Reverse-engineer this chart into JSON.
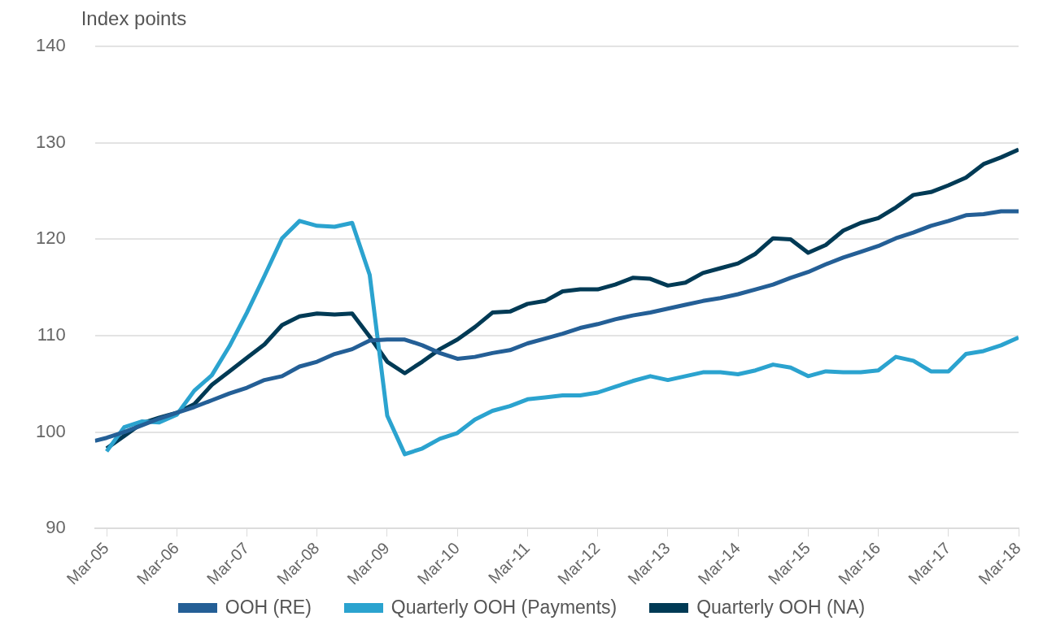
{
  "chart_data": {
    "type": "line",
    "ylabel": "Index points",
    "xlim": [
      "2005-01",
      "2018-03"
    ],
    "xticks": [
      {
        "value": "2005-03",
        "label": "Mar-05"
      },
      {
        "value": "2006-03",
        "label": "Mar-06"
      },
      {
        "value": "2007-03",
        "label": "Mar-07"
      },
      {
        "value": "2008-03",
        "label": "Mar-08"
      },
      {
        "value": "2009-03",
        "label": "Mar-09"
      },
      {
        "value": "2010-03",
        "label": "Mar-10"
      },
      {
        "value": "2011-03",
        "label": "Mar-11"
      },
      {
        "value": "2012-03",
        "label": "Mar-12"
      },
      {
        "value": "2013-03",
        "label": "Mar-13"
      },
      {
        "value": "2014-03",
        "label": "Mar-14"
      },
      {
        "value": "2015-03",
        "label": "Mar-15"
      },
      {
        "value": "2016-03",
        "label": "Mar-16"
      },
      {
        "value": "2017-03",
        "label": "Mar-17"
      },
      {
        "value": "2018-03",
        "label": "Mar-18"
      }
    ],
    "x": [
      "2005-03",
      "2005-06",
      "2005-09",
      "2005-12",
      "2006-03",
      "2006-06",
      "2006-09",
      "2006-12",
      "2007-03",
      "2007-06",
      "2007-09",
      "2007-12",
      "2008-03",
      "2008-06",
      "2008-09",
      "2008-12",
      "2009-03",
      "2009-06",
      "2009-09",
      "2009-12",
      "2010-03",
      "2010-06",
      "2010-09",
      "2010-12",
      "2011-03",
      "2011-06",
      "2011-09",
      "2011-12",
      "2012-03",
      "2012-06",
      "2012-09",
      "2012-12",
      "2013-03",
      "2013-06",
      "2013-09",
      "2013-12",
      "2014-03",
      "2014-06",
      "2014-09",
      "2014-12",
      "2015-03",
      "2015-06",
      "2015-09",
      "2015-12",
      "2016-03",
      "2016-06",
      "2016-09",
      "2016-12",
      "2017-03",
      "2017-06",
      "2017-09",
      "2017-12",
      "2018-03"
    ],
    "ylim": [
      90,
      140
    ],
    "yticks": [
      90,
      100,
      110,
      120,
      130,
      140
    ],
    "grid": "y",
    "legend": "bottom",
    "marker": "none",
    "line_style": "solid",
    "series": [
      {
        "name": "OOH (RE)",
        "color": "#245f96",
        "x": [
          "2005-01",
          "2005-03",
          "2005-06",
          "2005-09",
          "2005-12",
          "2006-03",
          "2006-06",
          "2006-09",
          "2006-12",
          "2007-03",
          "2007-06",
          "2007-09",
          "2007-12",
          "2008-03",
          "2008-06",
          "2008-09",
          "2008-12",
          "2009-03",
          "2009-06",
          "2009-09",
          "2009-12",
          "2010-03",
          "2010-06",
          "2010-09",
          "2010-12",
          "2011-03",
          "2011-06",
          "2011-09",
          "2011-12",
          "2012-03",
          "2012-06",
          "2012-09",
          "2012-12",
          "2013-03",
          "2013-06",
          "2013-09",
          "2013-12",
          "2014-03",
          "2014-06",
          "2014-09",
          "2014-12",
          "2015-03",
          "2015-06",
          "2015-09",
          "2015-12",
          "2016-03",
          "2016-06",
          "2016-09",
          "2016-12",
          "2017-03",
          "2017-06",
          "2017-09",
          "2017-12",
          "2018-03"
        ],
        "values": [
          99.1,
          99.4,
          100.0,
          100.7,
          101.4,
          102.0,
          102.6,
          103.3,
          104.0,
          104.6,
          105.4,
          105.8,
          106.8,
          107.3,
          108.1,
          108.6,
          109.5,
          109.6,
          109.6,
          109.0,
          108.2,
          107.6,
          107.8,
          108.2,
          108.5,
          109.2,
          109.7,
          110.2,
          110.8,
          111.2,
          111.7,
          112.1,
          112.4,
          112.8,
          113.2,
          113.6,
          113.9,
          114.3,
          114.8,
          115.3,
          116.0,
          116.6,
          117.4,
          118.1,
          118.7,
          119.3,
          120.1,
          120.7,
          121.4,
          121.9,
          122.5,
          122.6,
          122.9,
          122.9
        ]
      },
      {
        "name": "Quarterly OOH (Payments)",
        "color": "#2ba3cf",
        "values": [
          98.0,
          100.5,
          101.1,
          101.0,
          101.8,
          104.3,
          105.9,
          108.9,
          112.4,
          116.2,
          120.1,
          121.9,
          121.4,
          121.3,
          121.7,
          116.3,
          101.7,
          97.7,
          98.3,
          99.3,
          99.9,
          101.3,
          102.2,
          102.7,
          103.4,
          103.6,
          103.8,
          103.8,
          104.1,
          104.7,
          105.3,
          105.8,
          105.4,
          105.8,
          106.2,
          106.2,
          106.0,
          106.4,
          107.0,
          106.7,
          105.8,
          106.3,
          106.2,
          106.2,
          106.4,
          107.8,
          107.4,
          106.3,
          106.3,
          108.1,
          108.4,
          109.0,
          109.8
        ]
      },
      {
        "name": "Quarterly OOH (NA)",
        "color": "#003a55",
        "values": [
          98.3,
          99.6,
          100.9,
          101.5,
          102.0,
          102.9,
          104.9,
          106.3,
          107.7,
          109.1,
          111.1,
          112.0,
          112.3,
          112.2,
          112.3,
          109.9,
          107.3,
          106.1,
          107.3,
          108.6,
          109.6,
          110.9,
          112.4,
          112.5,
          113.3,
          113.6,
          114.6,
          114.8,
          114.8,
          115.3,
          116.0,
          115.9,
          115.2,
          115.5,
          116.5,
          117.0,
          117.5,
          118.5,
          120.1,
          120.0,
          118.6,
          119.4,
          120.9,
          121.7,
          122.2,
          123.3,
          124.6,
          124.9,
          125.6,
          126.4,
          127.8,
          128.5,
          129.3
        ]
      }
    ]
  }
}
